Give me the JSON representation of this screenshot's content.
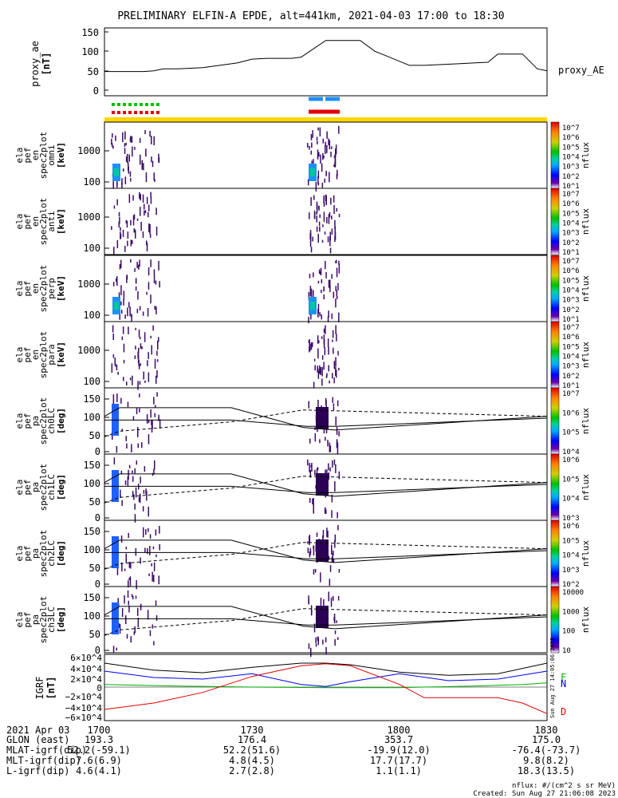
{
  "title": "PRELIMINARY ELFIN-A EPDE, alt=441km, 2021-04-03 17:00 to 18:30",
  "chart_data": [
    {
      "type": "line",
      "panel": "proxy_ae",
      "ylabel": [
        "proxy_ae",
        "[nT]"
      ],
      "yticks": [
        "150",
        "100",
        "50",
        "0"
      ],
      "ylim": [
        -10,
        150
      ],
      "legend": "proxy_AE",
      "x_minutes": [
        0,
        8,
        10,
        12,
        15,
        20,
        27,
        30,
        33,
        38,
        40,
        45,
        48,
        52,
        55,
        57,
        62,
        65,
        72,
        75,
        78,
        80,
        82,
        85,
        88,
        90
      ],
      "values": [
        48,
        48,
        50,
        55,
        55,
        58,
        70,
        80,
        82,
        82,
        85,
        128,
        128,
        128,
        100,
        90,
        64,
        64,
        68,
        70,
        72,
        93,
        93,
        93,
        55,
        50
      ]
    },
    {
      "type": "heatmap",
      "panel": "en omni",
      "ylabel": [
        "ela",
        "pef",
        "en",
        "spec2plot",
        "omni",
        "[keV]"
      ],
      "yticks": [
        "1000",
        "100"
      ],
      "scale": "log",
      "colorbar": {
        "label": "nflux",
        "ticks": [
          "10^7",
          "10^6",
          "10^5",
          "10^4",
          "10^3",
          "10^2",
          "10^1"
        ]
      }
    },
    {
      "type": "heatmap",
      "panel": "en anti",
      "ylabel": [
        "ela",
        "pef",
        "en",
        "spec2plot",
        "anti",
        "[keV]"
      ],
      "yticks": [
        "1000",
        "100"
      ],
      "scale": "log",
      "colorbar": {
        "label": "nflux",
        "ticks": [
          "10^7",
          "10^6",
          "10^5",
          "10^4",
          "10^3",
          "10^2",
          "10^1"
        ]
      }
    },
    {
      "type": "heatmap",
      "panel": "en perp",
      "ylabel": [
        "ela",
        "pef",
        "en",
        "spec2plot",
        "perp",
        "[keV]"
      ],
      "yticks": [
        "1000",
        "100"
      ],
      "scale": "log",
      "colorbar": {
        "label": "nflux",
        "ticks": [
          "10^7",
          "10^6",
          "10^5",
          "10^4",
          "10^3",
          "10^2",
          "10^1"
        ]
      }
    },
    {
      "type": "heatmap",
      "panel": "en para",
      "ylabel": [
        "ela",
        "pef",
        "en",
        "spec2plot",
        "para",
        "[keV]"
      ],
      "yticks": [
        "1000",
        "100"
      ],
      "scale": "log",
      "colorbar": {
        "label": "nflux",
        "ticks": [
          "10^7",
          "10^6",
          "10^5",
          "10^4",
          "10^3",
          "10^2",
          "10^1"
        ]
      }
    },
    {
      "type": "heatmap",
      "panel": "pa ch0LC",
      "ylabel": [
        "ela",
        "pef",
        "pa",
        "spec2plot",
        "ch0LC",
        "[deg]"
      ],
      "yticks": [
        "150",
        "100",
        "50",
        "0"
      ],
      "ylim": [
        0,
        180
      ],
      "colorbar": {
        "label": "nflux",
        "ticks": [
          "10^7",
          "10^6",
          "10^5",
          "10^4"
        ]
      }
    },
    {
      "type": "heatmap",
      "panel": "pa ch1LC",
      "ylabel": [
        "ela",
        "pef",
        "pa",
        "spec2plot",
        "ch1LC",
        "[deg]"
      ],
      "yticks": [
        "150",
        "100",
        "50",
        "0"
      ],
      "ylim": [
        0,
        180
      ],
      "colorbar": {
        "label": "nflux",
        "ticks": [
          "10^6",
          "10^5",
          "10^4",
          "10^3"
        ]
      }
    },
    {
      "type": "heatmap",
      "panel": "pa ch2LC",
      "ylabel": [
        "ela",
        "pef",
        "pa",
        "spec2plot",
        "ch2LC",
        "[deg]"
      ],
      "yticks": [
        "150",
        "100",
        "50",
        "0"
      ],
      "ylim": [
        0,
        180
      ],
      "colorbar": {
        "label": "nflux",
        "ticks": [
          "10^6",
          "10^5",
          "10^4",
          "10^3",
          "10^2"
        ]
      }
    },
    {
      "type": "heatmap",
      "panel": "pa ch3LC",
      "ylabel": [
        "ela",
        "pef",
        "pa",
        "spec2plot",
        "ch3LC",
        "[deg]"
      ],
      "yticks": [
        "150",
        "100",
        "50",
        "0"
      ],
      "ylim": [
        0,
        180
      ],
      "colorbar": {
        "label": "nflux",
        "ticks": [
          "10000",
          "1000",
          "100",
          "10"
        ]
      }
    },
    {
      "type": "line",
      "panel": "IGRF",
      "ylabel": [
        "IGRF",
        "[nT]"
      ],
      "yticks": [
        "6×10^4",
        "4×10^4",
        "2×10^4",
        "0",
        "−2×10^4",
        "−4×10^4",
        "−6×10^4"
      ],
      "ylim": [
        -60000,
        60000
      ],
      "series": [
        {
          "name": "F",
          "color": "#000000",
          "x_minutes": [
            0,
            10,
            20,
            30,
            40,
            45,
            50,
            60,
            70,
            80,
            90
          ],
          "values": [
            45000,
            32000,
            27000,
            37000,
            45000,
            45000,
            42000,
            28000,
            22000,
            25000,
            45000
          ]
        },
        {
          "name": "E",
          "color": "#00b000",
          "x_minutes": [
            0,
            15,
            30,
            45,
            60,
            75,
            85,
            90
          ],
          "values": [
            5000,
            2000,
            0,
            -1000,
            -1000,
            2000,
            5000,
            8000
          ]
        },
        {
          "name": "N",
          "color": "#0000ff",
          "x_minutes": [
            0,
            10,
            20,
            30,
            40,
            45,
            50,
            60,
            70,
            80,
            90
          ],
          "values": [
            30000,
            18000,
            15000,
            25000,
            5000,
            1000,
            10000,
            25000,
            12000,
            15000,
            30000
          ]
        },
        {
          "name": "D",
          "color": "#e00000",
          "x_minutes": [
            0,
            10,
            20,
            30,
            40,
            45,
            50,
            60,
            65,
            70,
            80,
            85,
            90
          ],
          "values": [
            -42000,
            -30000,
            -10000,
            20000,
            40000,
            44000,
            40000,
            5000,
            -20000,
            -20000,
            -20000,
            -30000,
            -50000
          ]
        }
      ]
    }
  ],
  "timestamp_vertical": "Sun Aug 27 14:05:06 2023",
  "xaxis": {
    "ticks": [
      "1700",
      "1730",
      "1800",
      "1830"
    ],
    "rows": [
      {
        "label": "2021 Apr 03",
        "values": [
          "",
          "",
          "",
          ""
        ]
      },
      {
        "label": "GLON (east)",
        "values": [
          "193.3",
          "176.4",
          "353.7",
          "175.0"
        ]
      },
      {
        "label": "MLAT-igrf(dip)",
        "values": [
          "52.2(-59.1)",
          "52.2(51.6)",
          "-19.9(12.0)",
          "-76.4(-73.7)"
        ]
      },
      {
        "label": "MLT-igrf(dip)",
        "values": [
          "7.6(6.9)",
          "4.8(4.5)",
          "17.7(17.7)",
          "9.8(8.2)"
        ]
      },
      {
        "label": "L-igrf(dip)",
        "values": [
          "4.6(4.1)",
          "2.7(2.8)",
          "1.1(1.1)",
          "18.3(13.5)"
        ]
      }
    ]
  },
  "footer": {
    "units": "nflux: #/(cm^2 s sr MeV)",
    "created": "Created: Sun Aug 27 21:06:08 2023"
  },
  "colors": {
    "sci_green": "#00c000",
    "sci_red": "#e00000",
    "sci_blue": "#1e90ff",
    "sci_red2": "#e00000",
    "orbit_bar": "#ffd700"
  }
}
